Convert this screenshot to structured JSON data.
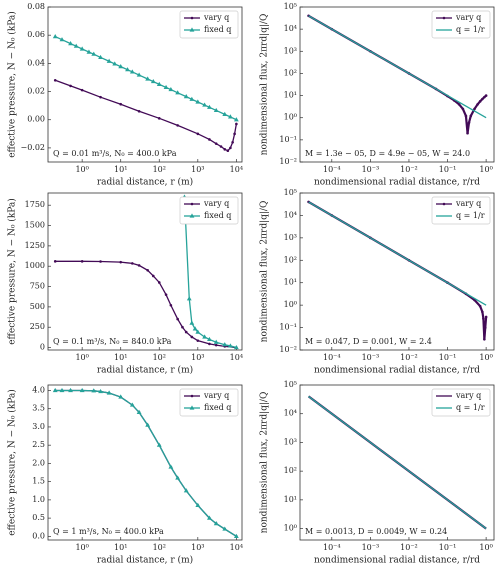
{
  "chart_data": [
    {
      "type": "line",
      "xscale": "log",
      "xlabel": "radial distance, r (m)",
      "ylabel": "effective pressure, N − N₀ (kPa)",
      "annotation": "Q = 0.01 m³/s, N₀ = 400.0 kPa",
      "legend": "upper right",
      "xlim": [
        0.13,
        14000
      ],
      "xticks": [
        {
          "value": 1,
          "label": "10⁰"
        },
        {
          "value": 10,
          "label": "10¹"
        },
        {
          "value": 100,
          "label": "10²"
        },
        {
          "value": 1000,
          "label": "10³"
        },
        {
          "value": 10000,
          "label": "10⁴"
        }
      ],
      "ylim": [
        -0.03,
        0.08
      ],
      "yticks": [
        {
          "value": -0.02,
          "label": "−0.02"
        },
        {
          "value": 0,
          "label": "0.00"
        },
        0.02,
        0.04,
        0.06,
        0.08
      ],
      "series": [
        {
          "name": "vary q",
          "color": "#420a56",
          "marker": "o",
          "x": [
            0.2,
            0.5,
            1,
            3,
            10,
            30,
            100,
            300,
            1000,
            2000,
            3000,
            4000,
            5000,
            6000,
            7000,
            8000,
            9000,
            10000
          ],
          "values": [
            0.028,
            0.024,
            0.021,
            0.016,
            0.011,
            0.006,
            0.001,
            -0.004,
            -0.01,
            -0.014,
            -0.017,
            -0.019,
            -0.021,
            -0.022,
            -0.02,
            -0.016,
            -0.01,
            -0.003
          ]
        },
        {
          "name": "fixed q",
          "color": "#26a39a",
          "marker": "^",
          "x": [
            0.2,
            0.3,
            0.5,
            0.7,
            1,
            1.5,
            2,
            3,
            5,
            7,
            10,
            15,
            20,
            30,
            50,
            70,
            100,
            150,
            200,
            300,
            500,
            700,
            1000,
            1500,
            2000,
            3000,
            5000,
            7000,
            10000
          ],
          "values": [
            0.059,
            0.0568,
            0.054,
            0.0522,
            0.0502,
            0.048,
            0.0465,
            0.0442,
            0.0415,
            0.0396,
            0.0377,
            0.0355,
            0.0339,
            0.0317,
            0.0289,
            0.0271,
            0.0251,
            0.0229,
            0.0214,
            0.0191,
            0.0164,
            0.0145,
            0.0126,
            0.0104,
            0.0088,
            0.0066,
            0.0038,
            0.002,
            0
          ]
        }
      ]
    },
    {
      "type": "line",
      "xscale": "log",
      "yscale": "log",
      "xlabel": "nondimensional radial distance, r/rd",
      "ylabel": "nondimensional flux, 2πrd|q|/Q",
      "annotation": "M = 1.3e − 05, D = 4.9e − 05, W = 24.0",
      "legend": "upper right",
      "xlim": [
        1.5e-05,
        1.6
      ],
      "xticks": [
        {
          "value": 0.0001,
          "label": "10⁻⁴"
        },
        {
          "value": 0.001,
          "label": "10⁻³"
        },
        {
          "value": 0.01,
          "label": "10⁻²"
        },
        {
          "value": 0.1,
          "label": "10⁻¹"
        },
        {
          "value": 1,
          "label": "10⁰"
        }
      ],
      "ylim": [
        0.01,
        100000
      ],
      "yticks": [
        {
          "value": 0.01,
          "label": "10⁻²"
        },
        {
          "value": 0.1,
          "label": "10⁻¹"
        },
        {
          "value": 1,
          "label": "10⁰"
        },
        {
          "value": 10,
          "label": "10¹"
        },
        {
          "value": 100,
          "label": "10²"
        },
        {
          "value": 1000,
          "label": "10³"
        },
        {
          "value": 10000,
          "label": "10⁴"
        },
        {
          "value": 100000,
          "label": "10⁵"
        }
      ],
      "series": [
        {
          "name": "vary q",
          "color": "#420a56",
          "marker": "o",
          "x": [
            2.5e-05,
            0.0001,
            0.001,
            0.01,
            0.05,
            0.1,
            0.15,
            0.2,
            0.25,
            0.3,
            0.33,
            0.36,
            0.4,
            0.5,
            0.6,
            0.7,
            0.8,
            0.9,
            1
          ],
          "values": [
            40000,
            10000,
            1000,
            100,
            20,
            9.5,
            6,
            4,
            2.5,
            1.2,
            0.2,
            0.6,
            1.2,
            2.5,
            4,
            5.5,
            7,
            8.5,
            10
          ]
        },
        {
          "name": "q = 1/r",
          "color": "#26a39a",
          "x": [
            2.5e-05,
            1
          ],
          "values": [
            40000,
            1
          ]
        }
      ]
    },
    {
      "type": "line",
      "xscale": "log",
      "xlabel": "radial distance, r (m)",
      "ylabel": "effective pressure, N − N₀ (kPa)",
      "annotation": "Q = 0.1 m³/s, N₀ = 840.0 kPa",
      "legend": "upper right",
      "xlim": [
        0.13,
        14000
      ],
      "xticks": [
        {
          "value": 1,
          "label": "10⁰"
        },
        {
          "value": 10,
          "label": "10¹"
        },
        {
          "value": 100,
          "label": "10²"
        },
        {
          "value": 1000,
          "label": "10³"
        },
        {
          "value": 10000,
          "label": "10⁴"
        }
      ],
      "ylim": [
        -30,
        1900
      ],
      "yticks": [
        0,
        250,
        500,
        750,
        1000,
        1250,
        1500,
        1750
      ],
      "series": [
        {
          "name": "vary q",
          "color": "#420a56",
          "marker": "o",
          "x": [
            0.2,
            1,
            3,
            10,
            20,
            30,
            50,
            70,
            100,
            150,
            200,
            300,
            400,
            500,
            700,
            1000,
            2000,
            3000,
            5000,
            10000
          ],
          "values": [
            1060,
            1060,
            1058,
            1050,
            1035,
            1010,
            950,
            880,
            800,
            650,
            520,
            350,
            250,
            190,
            130,
            85,
            45,
            30,
            15,
            0
          ]
        },
        {
          "name": "fixed q",
          "color": "#26a39a",
          "marker": "^",
          "x": [
            450,
            600,
            700,
            850,
            1000,
            1500,
            2000,
            3000,
            5000,
            7000,
            10000
          ],
          "values": [
            1850,
            600,
            300,
            230,
            190,
            130,
            100,
            65,
            35,
            20,
            0
          ]
        }
      ]
    },
    {
      "type": "line",
      "xscale": "log",
      "yscale": "log",
      "xlabel": "nondimensional radial distance, r/rd",
      "ylabel": "nondimensional flux, 2πrd|q|/Q",
      "annotation": "M = 0.047, D = 0.001, W = 2.4",
      "legend": "upper right",
      "xlim": [
        1.5e-05,
        1.6
      ],
      "xticks": [
        {
          "value": 0.0001,
          "label": "10⁻⁴"
        },
        {
          "value": 0.001,
          "label": "10⁻³"
        },
        {
          "value": 0.01,
          "label": "10⁻²"
        },
        {
          "value": 0.1,
          "label": "10⁻¹"
        },
        {
          "value": 1,
          "label": "10⁰"
        }
      ],
      "ylim": [
        0.01,
        100000
      ],
      "yticks": [
        {
          "value": 0.01,
          "label": "10⁻²"
        },
        {
          "value": 0.1,
          "label": "10⁻¹"
        },
        {
          "value": 1,
          "label": "10⁰"
        },
        {
          "value": 10,
          "label": "10¹"
        },
        {
          "value": 100,
          "label": "10²"
        },
        {
          "value": 1000,
          "label": "10³"
        },
        {
          "value": 10000,
          "label": "10⁴"
        },
        {
          "value": 100000,
          "label": "10⁵"
        }
      ],
      "series": [
        {
          "name": "vary q",
          "color": "#420a56",
          "marker": "o",
          "x": [
            2.5e-05,
            0.0001,
            0.001,
            0.01,
            0.1,
            0.3,
            0.5,
            0.7,
            0.8,
            0.85,
            0.9,
            0.95,
            1
          ],
          "values": [
            40000,
            10000,
            1000,
            100,
            10,
            3.2,
            1.7,
            0.9,
            0.5,
            0.25,
            0.03,
            0.1,
            0.3
          ]
        },
        {
          "name": "q = 1/r",
          "color": "#26a39a",
          "x": [
            2.5e-05,
            1
          ],
          "values": [
            40000,
            1
          ]
        }
      ]
    },
    {
      "type": "line",
      "xscale": "log",
      "xlabel": "radial distance, r (m)",
      "ylabel": "effective pressure, N − N₀ (kPa)",
      "annotation": "Q = 1 m³/s, N₀ = 400.0 kPa",
      "legend": "upper right",
      "xlim": [
        0.13,
        14000
      ],
      "xticks": [
        {
          "value": 1,
          "label": "10⁰"
        },
        {
          "value": 10,
          "label": "10¹"
        },
        {
          "value": 100,
          "label": "10²"
        },
        {
          "value": 1000,
          "label": "10³"
        },
        {
          "value": 10000,
          "label": "10⁴"
        }
      ],
      "ylim": [
        -0.1,
        4.15
      ],
      "yticks": [
        {
          "value": 0,
          "label": "0.0"
        },
        0.5,
        {
          "value": 1,
          "label": "1.0"
        },
        1.5,
        {
          "value": 2,
          "label": "2.0"
        },
        2.5,
        {
          "value": 3,
          "label": "3.0"
        },
        3.5,
        {
          "value": 4,
          "label": "4.0"
        }
      ],
      "series": [
        {
          "name": "vary q",
          "color": "#420a56",
          "marker": "o",
          "x": [
            0.2,
            0.3,
            0.5,
            1,
            2,
            3,
            5,
            10,
            20,
            30,
            50,
            100,
            200,
            300,
            500,
            1000,
            2000,
            3000,
            5000,
            10000
          ],
          "values": [
            4.0,
            4.0,
            4.0,
            4.0,
            3.99,
            3.97,
            3.93,
            3.82,
            3.6,
            3.4,
            3.05,
            2.5,
            1.9,
            1.6,
            1.25,
            0.85,
            0.5,
            0.35,
            0.2,
            0
          ]
        },
        {
          "name": "fixed q",
          "color": "#26a39a",
          "marker": "^",
          "x": [
            0.2,
            0.3,
            0.5,
            1,
            2,
            3,
            5,
            10,
            20,
            30,
            50,
            100,
            200,
            300,
            500,
            1000,
            2000,
            3000,
            5000,
            10000
          ],
          "values": [
            4.0,
            4.0,
            4.0,
            4.0,
            3.99,
            3.97,
            3.93,
            3.82,
            3.6,
            3.4,
            3.05,
            2.5,
            1.9,
            1.6,
            1.25,
            0.85,
            0.5,
            0.35,
            0.2,
            0
          ]
        }
      ]
    },
    {
      "type": "line",
      "xscale": "log",
      "yscale": "log",
      "xlabel": "nondimensional radial distance, r/rd",
      "ylabel": "nondimensional flux, 2πrd|q|/Q",
      "annotation": "M = 0.0013, D = 0.0049, W = 0.24",
      "legend": "upper right",
      "xlim": [
        1.5e-05,
        1.6
      ],
      "xticks": [
        {
          "value": 0.0001,
          "label": "10⁻⁴"
        },
        {
          "value": 0.001,
          "label": "10⁻³"
        },
        {
          "value": 0.01,
          "label": "10⁻²"
        },
        {
          "value": 0.1,
          "label": "10⁻¹"
        },
        {
          "value": 1,
          "label": "10⁰"
        }
      ],
      "ylim": [
        0.4,
        100000
      ],
      "yticks": [
        {
          "value": 1,
          "label": "10⁰"
        },
        {
          "value": 10,
          "label": "10¹"
        },
        {
          "value": 100,
          "label": "10²"
        },
        {
          "value": 1000,
          "label": "10³"
        },
        {
          "value": 10000,
          "label": "10⁴"
        },
        {
          "value": 100000,
          "label": "10⁵"
        }
      ],
      "series": [
        {
          "name": "vary q",
          "color": "#420a56",
          "x": [
            2.5e-05,
            1
          ],
          "values": [
            40000,
            1
          ]
        },
        {
          "name": "q = 1/r",
          "color": "#26a39a",
          "x": [
            2.5e-05,
            1
          ],
          "values": [
            40000,
            1
          ]
        }
      ]
    }
  ]
}
